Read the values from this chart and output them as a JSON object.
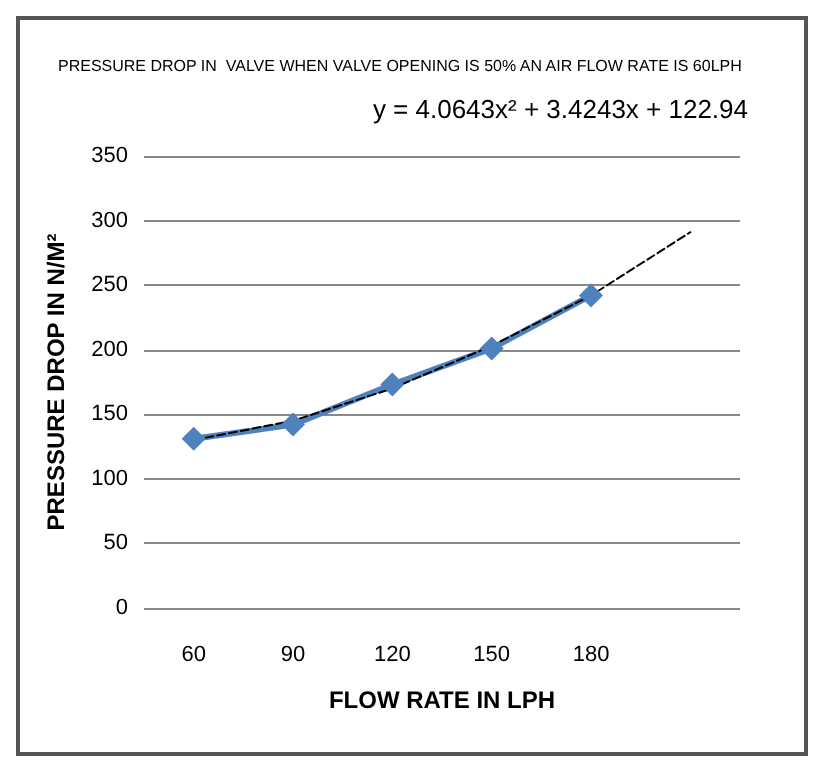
{
  "chart_data": {
    "type": "line",
    "title": "PRESSURE DROP IN  VALVE WHEN VALVE OPENING IS 50% AN AIR FLOW RATE IS 60LPH",
    "xlabel": "FLOW RATE IN LPH",
    "ylabel": "PRESSURE DROP IN N/M²",
    "annotations": [
      "y = 4.0643x² + 3.4243x + 122.94"
    ],
    "categories": [
      "60",
      "90",
      "120",
      "150",
      "180",
      null
    ],
    "series": [
      {
        "color": "#4f81bd",
        "values": [
          131,
          142,
          173,
          201,
          242,
          null
        ],
        "marker": "diamond",
        "line_style": "solid"
      },
      {
        "color": "#000000",
        "values": [
          130,
          145,
          170,
          203,
          242,
          291
        ],
        "marker": "none",
        "line_style": "dashed"
      }
    ],
    "ylim": [
      0,
      350
    ],
    "yticks": [
      0,
      50,
      100,
      150,
      200,
      250,
      300,
      350
    ],
    "grid": "y"
  }
}
